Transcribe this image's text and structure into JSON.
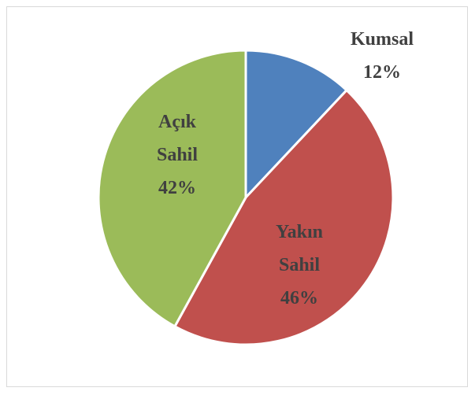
{
  "chart_data": {
    "type": "pie",
    "categories": [
      "Kumsal",
      "Yakın Sahil",
      "Açık Sahil"
    ],
    "values": [
      12,
      46,
      42
    ],
    "value_labels": [
      "12%",
      "46%",
      "42%"
    ],
    "colors": [
      "#4f81bd",
      "#c0504d",
      "#9bbb59"
    ]
  }
}
